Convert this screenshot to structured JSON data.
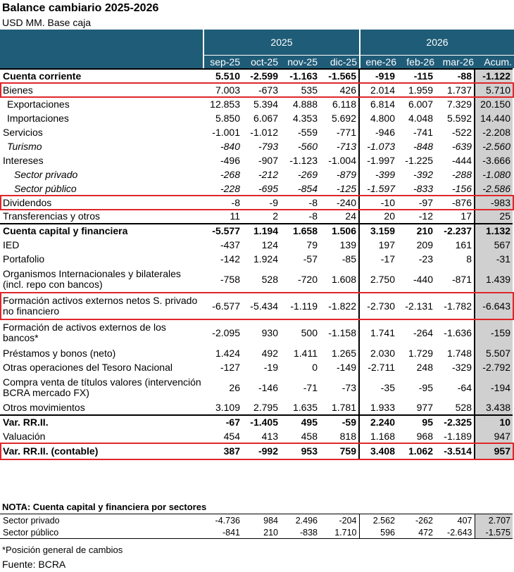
{
  "title": "Balance cambiario 2025-2026",
  "subtitle": "USD MM. Base caja",
  "years": [
    "2025",
    "2026"
  ],
  "months": [
    "sep-25",
    "oct-25",
    "nov-25",
    "dic-25",
    "ene-26",
    "feb-26",
    "mar-26",
    "Acum."
  ],
  "chart_data": {
    "type": "table",
    "columns": [
      "sep-25",
      "oct-25",
      "nov-25",
      "dic-25",
      "ene-26",
      "feb-26",
      "mar-26",
      "Acum."
    ],
    "rows": [
      {
        "label": "Cuenta corriente",
        "values": [
          "5.510",
          "-2.599",
          "-1.163",
          "-1.565",
          "-919",
          "-115",
          "-88",
          "-1.122"
        ]
      },
      {
        "label": "Bienes",
        "values": [
          "7.003",
          "-673",
          "535",
          "426",
          "2.014",
          "1.959",
          "1.737",
          "5.710"
        ]
      },
      {
        "label": "Exportaciones",
        "values": [
          "12.853",
          "5.394",
          "4.888",
          "6.118",
          "6.814",
          "6.007",
          "7.329",
          "20.150"
        ]
      },
      {
        "label": "Importaciones",
        "values": [
          "5.850",
          "6.067",
          "4.353",
          "5.692",
          "4.800",
          "4.048",
          "5.592",
          "14.440"
        ]
      },
      {
        "label": "Servicios",
        "values": [
          "-1.001",
          "-1.012",
          "-559",
          "-771",
          "-946",
          "-741",
          "-522",
          "-2.208"
        ]
      },
      {
        "label": "Turismo",
        "values": [
          "-840",
          "-793",
          "-560",
          "-713",
          "-1.073",
          "-848",
          "-639",
          "-2.560"
        ]
      },
      {
        "label": "Intereses",
        "values": [
          "-496",
          "-907",
          "-1.123",
          "-1.004",
          "-1.997",
          "-1.225",
          "-444",
          "-3.666"
        ]
      },
      {
        "label": "Sector privado",
        "values": [
          "-268",
          "-212",
          "-269",
          "-879",
          "-399",
          "-392",
          "-288",
          "-1.080"
        ]
      },
      {
        "label": "Sector público",
        "values": [
          "-228",
          "-695",
          "-854",
          "-125",
          "-1.597",
          "-833",
          "-156",
          "-2.586"
        ]
      },
      {
        "label": "Dividendos",
        "values": [
          "-8",
          "-9",
          "-8",
          "-240",
          "-10",
          "-97",
          "-876",
          "-983"
        ]
      },
      {
        "label": "Transferencias y otros",
        "values": [
          "11",
          "2",
          "-8",
          "24",
          "20",
          "-12",
          "17",
          "25"
        ]
      },
      {
        "label": "Cuenta capital y financiera",
        "values": [
          "-5.577",
          "1.194",
          "1.658",
          "1.506",
          "3.159",
          "210",
          "-2.237",
          "1.132"
        ]
      },
      {
        "label": "IED",
        "values": [
          "-437",
          "124",
          "79",
          "139",
          "197",
          "209",
          "161",
          "567"
        ]
      },
      {
        "label": "Portafolio",
        "values": [
          "-142",
          "1.924",
          "-57",
          "-85",
          "-17",
          "-23",
          "8",
          "-31"
        ]
      },
      {
        "label": "Organismos Internacionales y bilaterales (incl. repo con bancos)",
        "values": [
          "-758",
          "528",
          "-720",
          "1.608",
          "2.750",
          "-440",
          "-871",
          "1.439"
        ]
      },
      {
        "label": "Formación activos externos netos S. privado no financiero",
        "values": [
          "-6.577",
          "-5.434",
          "-1.119",
          "-1.822",
          "-2.730",
          "-2.131",
          "-1.782",
          "-6.643"
        ]
      },
      {
        "label": "Formación de activos externos de los bancos*",
        "values": [
          "-2.095",
          "930",
          "500",
          "-1.158",
          "1.741",
          "-264",
          "-1.636",
          "-159"
        ]
      },
      {
        "label": "Préstamos y bonos (neto)",
        "values": [
          "1.424",
          "492",
          "1.411",
          "1.265",
          "2.030",
          "1.729",
          "1.748",
          "5.507"
        ]
      },
      {
        "label": "Otras operaciones del Tesoro Nacional",
        "values": [
          "-127",
          "-19",
          "0",
          "-149",
          "-2.711",
          "248",
          "-329",
          "-2.792"
        ]
      },
      {
        "label": "Compra venta de títulos valores (intervención BCRA mercado FX)",
        "values": [
          "26",
          "-146",
          "-71",
          "-73",
          "-35",
          "-95",
          "-64",
          "-194"
        ]
      },
      {
        "label": "Otros movimientos",
        "values": [
          "3.109",
          "2.795",
          "1.635",
          "1.781",
          "1.933",
          "977",
          "528",
          "3.438"
        ]
      },
      {
        "label": "Var. RR.II.",
        "values": [
          "-67",
          "-1.405",
          "495",
          "-59",
          "2.240",
          "95",
          "-2.325",
          "10"
        ]
      },
      {
        "label": "Valuación",
        "values": [
          "454",
          "413",
          "458",
          "818",
          "1.168",
          "968",
          "-1.189",
          "947"
        ]
      },
      {
        "label": "Var. RR.II. (contable)",
        "values": [
          "387",
          "-992",
          "953",
          "759",
          "3.408",
          "1.062",
          "-3.514",
          "957"
        ]
      }
    ],
    "highlighted_rows": [
      "Bienes",
      "Dividendos",
      "Formación activos externos netos S. privado no financiero",
      "Var. RR.II. (contable)"
    ],
    "nota_title": "NOTA: Cuenta capital y financiera por sectores",
    "nota_rows": [
      {
        "label": "Sector privado",
        "values": [
          "-4.736",
          "984",
          "2.496",
          "-204",
          "2.562",
          "-262",
          "407",
          "2.707"
        ]
      },
      {
        "label": "Sector público",
        "values": [
          "-841",
          "210",
          "-838",
          "1.710",
          "596",
          "472",
          "-2.643",
          "-1.575"
        ]
      }
    ]
  },
  "footnote": "*Posición general de cambios",
  "source": "Fuente: BCRA",
  "colors": {
    "header": "#1f5c78",
    "highlight": "#e0262b",
    "accum_bg": "#d0d0d0"
  }
}
